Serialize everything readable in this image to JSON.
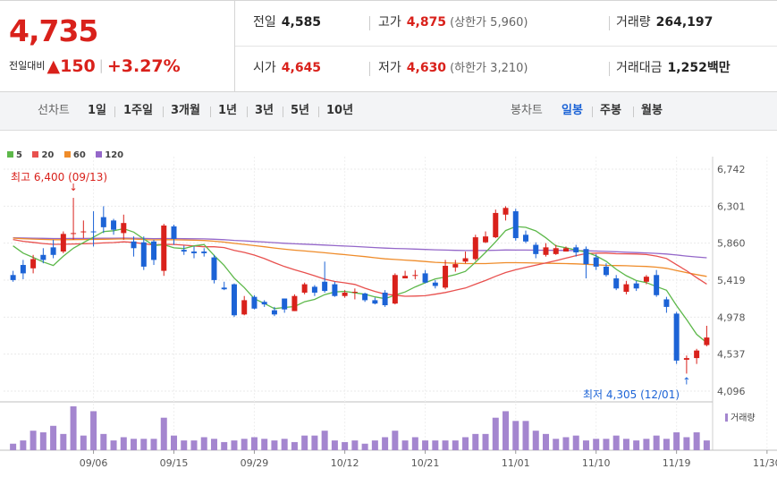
{
  "quote": {
    "price": "4,735",
    "change_label": "전일대비",
    "change_arrow": "▲",
    "change": "150",
    "change_pct": "+3.27%",
    "prev_close_label": "전일",
    "prev_close": "4,585",
    "high_label": "고가",
    "high": "4,875",
    "upper_limit_label": "상한가",
    "upper_limit": "5,960",
    "volume_label": "거래량",
    "volume": "264,197",
    "open_label": "시가",
    "open": "4,645",
    "low_label": "저가",
    "low": "4,630",
    "lower_limit_label": "하한가",
    "lower_limit": "3,210",
    "value_label": "거래대금",
    "value": "1,252",
    "value_unit": "백만"
  },
  "tabs": {
    "line_label": "선차트",
    "line_periods": [
      "1일",
      "1주일",
      "3개월",
      "1년",
      "3년",
      "5년",
      "10년"
    ],
    "candle_label": "봉차트",
    "candle_periods": [
      "일봉",
      "주봉",
      "월봉"
    ],
    "candle_active": "일봉"
  },
  "colors": {
    "up": "#d9211b",
    "down": "#1c63d6",
    "ma5": "#5db84a",
    "ma20": "#e8504e",
    "ma60": "#ef8c2a",
    "ma120": "#9467c9",
    "volume": "#a486cf"
  },
  "chart_data": {
    "type": "candlestick",
    "y_ticks": [
      6742,
      6301,
      5860,
      5419,
      4978,
      4537,
      4096
    ],
    "ylim": [
      4000,
      6800
    ],
    "x_tick_labels": [
      "09/06",
      "09/15",
      "09/29",
      "10/12",
      "10/21",
      "11/01",
      "11/10",
      "11/19",
      "11/30"
    ],
    "legend": [
      "5",
      "20",
      "60",
      "120"
    ],
    "volume_label": "거래량",
    "high_annotation": "최고 6,400 (09/13)",
    "low_annotation": "최저 4,305 (12/01)",
    "candles": [
      [
        5480,
        5420,
        5530,
        5400
      ],
      [
        5600,
        5500,
        5660,
        5430
      ],
      [
        5560,
        5670,
        5720,
        5500
      ],
      [
        5720,
        5660,
        5800,
        5620
      ],
      [
        5810,
        5720,
        5900,
        5680
      ],
      [
        5760,
        5970,
        6000,
        5740
      ],
      [
        5980,
        5980,
        6400,
        5900
      ],
      [
        5990,
        6000,
        6130,
        5920
      ],
      [
        6000,
        5990,
        6240,
        5820
      ],
      [
        6170,
        6050,
        6300,
        5980
      ],
      [
        6130,
        6020,
        6150,
        5960
      ],
      [
        5980,
        6100,
        6200,
        5900
      ],
      [
        5880,
        5800,
        5940,
        5700
      ],
      [
        5870,
        5580,
        5940,
        5540
      ],
      [
        5880,
        5660,
        5900,
        5600
      ],
      [
        5530,
        6070,
        6090,
        5470
      ],
      [
        6060,
        5910,
        6080,
        5840
      ],
      [
        5780,
        5760,
        5830,
        5720
      ],
      [
        5760,
        5740,
        5820,
        5680
      ],
      [
        5760,
        5740,
        5800,
        5700
      ],
      [
        5690,
        5420,
        5720,
        5380
      ],
      [
        5330,
        5310,
        5400,
        5300
      ],
      [
        5370,
        5000,
        5380,
        4980
      ],
      [
        5010,
        5180,
        5230,
        5000
      ],
      [
        5220,
        5080,
        5240,
        5070
      ],
      [
        5160,
        5130,
        5180,
        5100
      ],
      [
        5060,
        5010,
        5100,
        4990
      ],
      [
        5200,
        5070,
        5200,
        5030
      ],
      [
        5050,
        5230,
        5250,
        5050
      ],
      [
        5270,
        5370,
        5390,
        5250
      ],
      [
        5340,
        5270,
        5360,
        5230
      ],
      [
        5400,
        5290,
        5640,
        5270
      ],
      [
        5370,
        5230,
        5400,
        5220
      ],
      [
        5230,
        5270,
        5300,
        5210
      ],
      [
        5280,
        5280,
        5320,
        5190
      ],
      [
        5260,
        5180,
        5270,
        5160
      ],
      [
        5180,
        5140,
        5210,
        5130
      ],
      [
        5270,
        5120,
        5300,
        5100
      ],
      [
        5140,
        5480,
        5500,
        5130
      ],
      [
        5440,
        5470,
        5530,
        5440
      ],
      [
        5480,
        5480,
        5540,
        5430
      ],
      [
        5500,
        5390,
        5540,
        5380
      ],
      [
        5390,
        5350,
        5420,
        5320
      ],
      [
        5330,
        5590,
        5660,
        5310
      ],
      [
        5570,
        5610,
        5660,
        5520
      ],
      [
        5640,
        5680,
        5760,
        5620
      ],
      [
        5670,
        5930,
        5960,
        5650
      ],
      [
        5870,
        5940,
        6000,
        5860
      ],
      [
        5930,
        6220,
        6260,
        5920
      ],
      [
        6200,
        6280,
        6300,
        6130
      ],
      [
        6240,
        5920,
        6270,
        5890
      ],
      [
        5960,
        5880,
        6010,
        5860
      ],
      [
        5840,
        5730,
        5870,
        5680
      ],
      [
        5720,
        5810,
        5860,
        5700
      ],
      [
        5730,
        5800,
        5840,
        5720
      ],
      [
        5760,
        5800,
        5820,
        5760
      ],
      [
        5810,
        5750,
        5840,
        5700
      ],
      [
        5790,
        5610,
        5820,
        5440
      ],
      [
        5690,
        5580,
        5730,
        5540
      ],
      [
        5580,
        5480,
        5620,
        5460
      ],
      [
        5440,
        5320,
        5480,
        5300
      ],
      [
        5280,
        5370,
        5410,
        5250
      ],
      [
        5380,
        5320,
        5410,
        5290
      ],
      [
        5400,
        5460,
        5480,
        5370
      ],
      [
        5480,
        5240,
        5540,
        5220
      ],
      [
        5190,
        5100,
        5220,
        5030
      ],
      [
        5020,
        4460,
        5040,
        4420
      ],
      [
        4470,
        4490,
        4520,
        4305
      ],
      [
        4490,
        4580,
        4600,
        4420
      ],
      [
        4645,
        4735,
        4875,
        4630
      ]
    ],
    "volume": [
      20,
      30,
      60,
      55,
      75,
      50,
      135,
      45,
      120,
      50,
      30,
      40,
      35,
      35,
      35,
      100,
      45,
      30,
      30,
      40,
      35,
      25,
      30,
      35,
      40,
      35,
      30,
      35,
      25,
      45,
      45,
      60,
      30,
      25,
      30,
      20,
      30,
      40,
      60,
      30,
      40,
      30,
      30,
      30,
      30,
      40,
      50,
      50,
      100,
      120,
      90,
      90,
      60,
      50,
      35,
      40,
      45,
      30,
      35,
      35,
      45,
      35,
      30,
      35,
      45,
      35,
      55,
      40,
      55,
      30
    ]
  }
}
